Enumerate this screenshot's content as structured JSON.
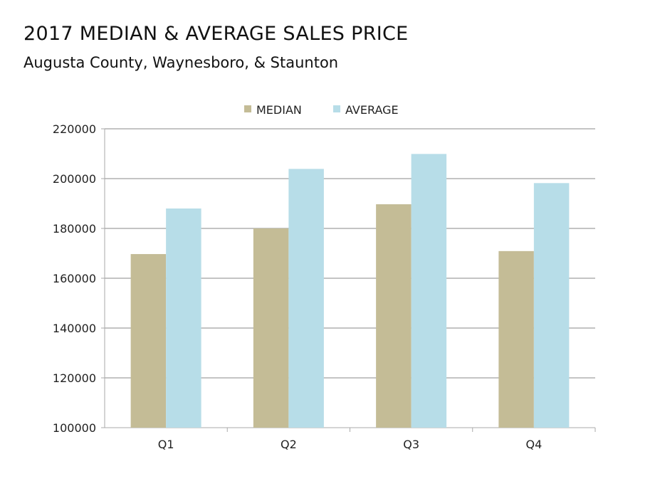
{
  "chart_data": {
    "type": "bar",
    "title": "2017 MEDIAN & AVERAGE SALES PRICE",
    "subtitle": "Augusta County, Waynesboro, & Staunton",
    "categories": [
      "Q1",
      "Q2",
      "Q3",
      "Q4"
    ],
    "series": [
      {
        "name": "MEDIAN",
        "color": "#c4bc96",
        "values": [
          169700,
          180000,
          189700,
          170900
        ]
      },
      {
        "name": "AVERAGE",
        "color": "#b7dde8",
        "values": [
          188000,
          203900,
          209900,
          198200
        ]
      }
    ],
    "ylim": [
      100000,
      220000
    ],
    "yticks": [
      "100000",
      "120000",
      "140000",
      "160000",
      "180000",
      "200000",
      "220000"
    ],
    "grid": true,
    "legend": "top"
  }
}
